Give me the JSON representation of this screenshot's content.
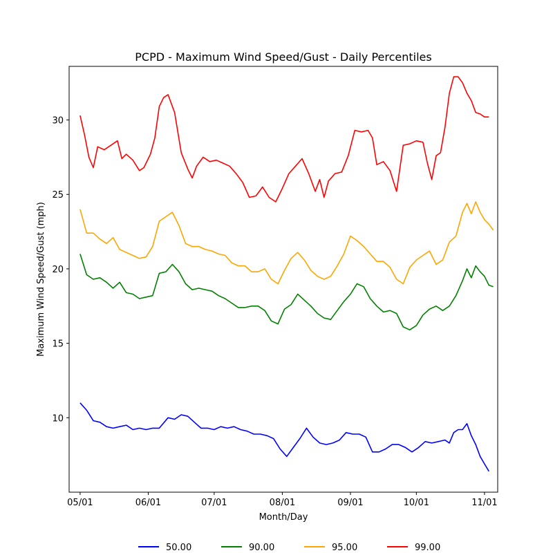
{
  "chart_data": {
    "type": "line",
    "title": "PCPD - Maximum Wind Speed/Gust - Daily Percentiles",
    "xlabel": "Month/Day",
    "ylabel": "Maximum Wind Speed/Gust (mph)",
    "x_ticks": [
      "05/01",
      "06/01",
      "07/01",
      "08/01",
      "09/01",
      "10/01",
      "11/01"
    ],
    "y_ticks": [
      10,
      15,
      20,
      25,
      30
    ],
    "xlim": [
      -5,
      190
    ],
    "ylim": [
      5,
      33.6
    ],
    "grid": false,
    "legend_position": "bottom",
    "series": [
      {
        "name": "50.00",
        "color": "#0000ff",
        "points": [
          [
            0,
            11.0
          ],
          [
            3,
            10.5
          ],
          [
            6,
            9.8
          ],
          [
            9,
            9.7
          ],
          [
            12,
            9.4
          ],
          [
            15,
            9.3
          ],
          [
            18,
            9.4
          ],
          [
            21,
            9.5
          ],
          [
            24,
            9.2
          ],
          [
            27,
            9.3
          ],
          [
            30,
            9.2
          ],
          [
            33,
            9.3
          ],
          [
            36,
            9.3
          ],
          [
            40,
            10.0
          ],
          [
            43,
            9.9
          ],
          [
            46,
            10.2
          ],
          [
            49,
            10.1
          ],
          [
            52,
            9.7
          ],
          [
            55,
            9.3
          ],
          [
            58,
            9.3
          ],
          [
            61,
            9.2
          ],
          [
            64,
            9.4
          ],
          [
            67,
            9.3
          ],
          [
            70,
            9.4
          ],
          [
            73,
            9.2
          ],
          [
            76,
            9.1
          ],
          [
            79,
            8.9
          ],
          [
            82,
            8.9
          ],
          [
            85,
            8.8
          ],
          [
            88,
            8.6
          ],
          [
            91,
            7.9
          ],
          [
            94,
            7.4
          ],
          [
            97,
            8.0
          ],
          [
            100,
            8.6
          ],
          [
            103,
            9.3
          ],
          [
            106,
            8.7
          ],
          [
            109,
            8.3
          ],
          [
            112,
            8.2
          ],
          [
            115,
            8.3
          ],
          [
            118,
            8.5
          ],
          [
            121,
            9.0
          ],
          [
            124,
            8.9
          ],
          [
            127,
            8.9
          ],
          [
            130,
            8.7
          ],
          [
            133,
            7.7
          ],
          [
            136,
            7.7
          ],
          [
            139,
            7.9
          ],
          [
            142,
            8.2
          ],
          [
            145,
            8.2
          ],
          [
            148,
            8.0
          ],
          [
            151,
            7.7
          ],
          [
            154,
            8.0
          ],
          [
            157,
            8.4
          ],
          [
            160,
            8.3
          ],
          [
            163,
            8.4
          ],
          [
            166,
            8.5
          ],
          [
            168,
            8.3
          ],
          [
            170,
            9.0
          ],
          [
            172,
            9.2
          ],
          [
            174,
            9.2
          ],
          [
            176,
            9.6
          ],
          [
            178,
            8.8
          ],
          [
            180,
            8.2
          ],
          [
            182,
            7.4
          ],
          [
            184,
            6.9
          ],
          [
            186,
            6.4
          ]
        ]
      },
      {
        "name": "90.00",
        "color": "#008000",
        "points": [
          [
            0,
            21.0
          ],
          [
            3,
            19.6
          ],
          [
            6,
            19.3
          ],
          [
            9,
            19.4
          ],
          [
            12,
            19.1
          ],
          [
            15,
            18.7
          ],
          [
            18,
            19.1
          ],
          [
            21,
            18.4
          ],
          [
            24,
            18.3
          ],
          [
            27,
            18.0
          ],
          [
            30,
            18.1
          ],
          [
            33,
            18.2
          ],
          [
            36,
            19.7
          ],
          [
            39,
            19.8
          ],
          [
            42,
            20.3
          ],
          [
            45,
            19.8
          ],
          [
            48,
            19.0
          ],
          [
            51,
            18.6
          ],
          [
            54,
            18.7
          ],
          [
            57,
            18.6
          ],
          [
            60,
            18.5
          ],
          [
            63,
            18.2
          ],
          [
            66,
            18.0
          ],
          [
            69,
            17.7
          ],
          [
            72,
            17.4
          ],
          [
            75,
            17.4
          ],
          [
            78,
            17.5
          ],
          [
            81,
            17.5
          ],
          [
            84,
            17.2
          ],
          [
            87,
            16.5
          ],
          [
            90,
            16.3
          ],
          [
            93,
            17.3
          ],
          [
            96,
            17.6
          ],
          [
            99,
            18.3
          ],
          [
            102,
            17.9
          ],
          [
            105,
            17.5
          ],
          [
            108,
            17.0
          ],
          [
            111,
            16.7
          ],
          [
            114,
            16.6
          ],
          [
            117,
            17.2
          ],
          [
            120,
            17.8
          ],
          [
            123,
            18.3
          ],
          [
            126,
            19.0
          ],
          [
            129,
            18.8
          ],
          [
            132,
            18.0
          ],
          [
            135,
            17.5
          ],
          [
            138,
            17.1
          ],
          [
            141,
            17.2
          ],
          [
            144,
            17.0
          ],
          [
            147,
            16.1
          ],
          [
            150,
            15.9
          ],
          [
            153,
            16.2
          ],
          [
            156,
            16.9
          ],
          [
            159,
            17.3
          ],
          [
            162,
            17.5
          ],
          [
            165,
            17.2
          ],
          [
            168,
            17.5
          ],
          [
            171,
            18.2
          ],
          [
            174,
            19.2
          ],
          [
            176,
            20.0
          ],
          [
            178,
            19.4
          ],
          [
            180,
            20.2
          ],
          [
            182,
            19.8
          ],
          [
            184,
            19.5
          ],
          [
            186,
            18.9
          ],
          [
            188,
            18.8
          ]
        ]
      },
      {
        "name": "95.00",
        "color": "#ffa500",
        "points": [
          [
            0,
            24.0
          ],
          [
            3,
            22.4
          ],
          [
            6,
            22.4
          ],
          [
            9,
            22.0
          ],
          [
            12,
            21.7
          ],
          [
            15,
            22.1
          ],
          [
            18,
            21.3
          ],
          [
            21,
            21.1
          ],
          [
            24,
            20.9
          ],
          [
            27,
            20.7
          ],
          [
            30,
            20.8
          ],
          [
            33,
            21.5
          ],
          [
            36,
            23.2
          ],
          [
            39,
            23.5
          ],
          [
            42,
            23.8
          ],
          [
            45,
            22.9
          ],
          [
            48,
            21.7
          ],
          [
            51,
            21.5
          ],
          [
            54,
            21.5
          ],
          [
            57,
            21.3
          ],
          [
            60,
            21.2
          ],
          [
            63,
            21.0
          ],
          [
            66,
            20.9
          ],
          [
            69,
            20.4
          ],
          [
            72,
            20.2
          ],
          [
            75,
            20.2
          ],
          [
            78,
            19.8
          ],
          [
            81,
            19.8
          ],
          [
            84,
            20.0
          ],
          [
            87,
            19.3
          ],
          [
            90,
            19.0
          ],
          [
            93,
            19.9
          ],
          [
            96,
            20.7
          ],
          [
            99,
            21.1
          ],
          [
            102,
            20.6
          ],
          [
            105,
            19.9
          ],
          [
            108,
            19.5
          ],
          [
            111,
            19.3
          ],
          [
            114,
            19.5
          ],
          [
            117,
            20.2
          ],
          [
            120,
            21.0
          ],
          [
            123,
            22.2
          ],
          [
            126,
            21.9
          ],
          [
            129,
            21.5
          ],
          [
            132,
            21.0
          ],
          [
            135,
            20.5
          ],
          [
            138,
            20.5
          ],
          [
            141,
            20.1
          ],
          [
            144,
            19.3
          ],
          [
            147,
            19.0
          ],
          [
            150,
            20.1
          ],
          [
            153,
            20.6
          ],
          [
            156,
            20.9
          ],
          [
            159,
            21.2
          ],
          [
            162,
            20.3
          ],
          [
            165,
            20.6
          ],
          [
            168,
            21.8
          ],
          [
            171,
            22.2
          ],
          [
            174,
            23.8
          ],
          [
            176,
            24.4
          ],
          [
            178,
            23.7
          ],
          [
            180,
            24.5
          ],
          [
            182,
            23.8
          ],
          [
            184,
            23.3
          ],
          [
            186,
            23.0
          ],
          [
            188,
            22.6
          ]
        ]
      },
      {
        "name": "99.00",
        "color": "#ff0000",
        "points": [
          [
            0,
            30.3
          ],
          [
            2,
            29.0
          ],
          [
            4,
            27.5
          ],
          [
            6,
            26.8
          ],
          [
            8,
            28.2
          ],
          [
            11,
            28.0
          ],
          [
            14,
            28.3
          ],
          [
            17,
            28.6
          ],
          [
            19,
            27.4
          ],
          [
            21,
            27.7
          ],
          [
            24,
            27.3
          ],
          [
            27,
            26.6
          ],
          [
            29,
            26.8
          ],
          [
            32,
            27.7
          ],
          [
            34,
            28.8
          ],
          [
            36,
            30.9
          ],
          [
            38,
            31.5
          ],
          [
            40,
            31.7
          ],
          [
            43,
            30.5
          ],
          [
            46,
            27.8
          ],
          [
            49,
            26.7
          ],
          [
            51,
            26.1
          ],
          [
            53,
            26.9
          ],
          [
            56,
            27.5
          ],
          [
            59,
            27.2
          ],
          [
            62,
            27.3
          ],
          [
            65,
            27.1
          ],
          [
            68,
            26.9
          ],
          [
            71,
            26.4
          ],
          [
            74,
            25.8
          ],
          [
            77,
            24.8
          ],
          [
            80,
            24.9
          ],
          [
            83,
            25.5
          ],
          [
            86,
            24.8
          ],
          [
            89,
            24.5
          ],
          [
            92,
            25.4
          ],
          [
            95,
            26.4
          ],
          [
            98,
            26.9
          ],
          [
            101,
            27.4
          ],
          [
            104,
            26.4
          ],
          [
            107,
            25.2
          ],
          [
            109,
            26.0
          ],
          [
            111,
            24.8
          ],
          [
            113,
            25.9
          ],
          [
            116,
            26.4
          ],
          [
            119,
            26.5
          ],
          [
            122,
            27.6
          ],
          [
            125,
            29.3
          ],
          [
            128,
            29.2
          ],
          [
            131,
            29.3
          ],
          [
            133,
            28.8
          ],
          [
            135,
            27.0
          ],
          [
            138,
            27.2
          ],
          [
            141,
            26.6
          ],
          [
            144,
            25.2
          ],
          [
            147,
            28.3
          ],
          [
            150,
            28.4
          ],
          [
            153,
            28.6
          ],
          [
            156,
            28.5
          ],
          [
            158,
            27.1
          ],
          [
            160,
            26.0
          ],
          [
            162,
            27.6
          ],
          [
            164,
            27.8
          ],
          [
            166,
            29.5
          ],
          [
            168,
            31.8
          ],
          [
            170,
            32.9
          ],
          [
            172,
            32.9
          ],
          [
            174,
            32.5
          ],
          [
            176,
            31.8
          ],
          [
            178,
            31.3
          ],
          [
            180,
            30.5
          ],
          [
            182,
            30.4
          ],
          [
            184,
            30.2
          ],
          [
            186,
            30.2
          ]
        ]
      }
    ]
  }
}
